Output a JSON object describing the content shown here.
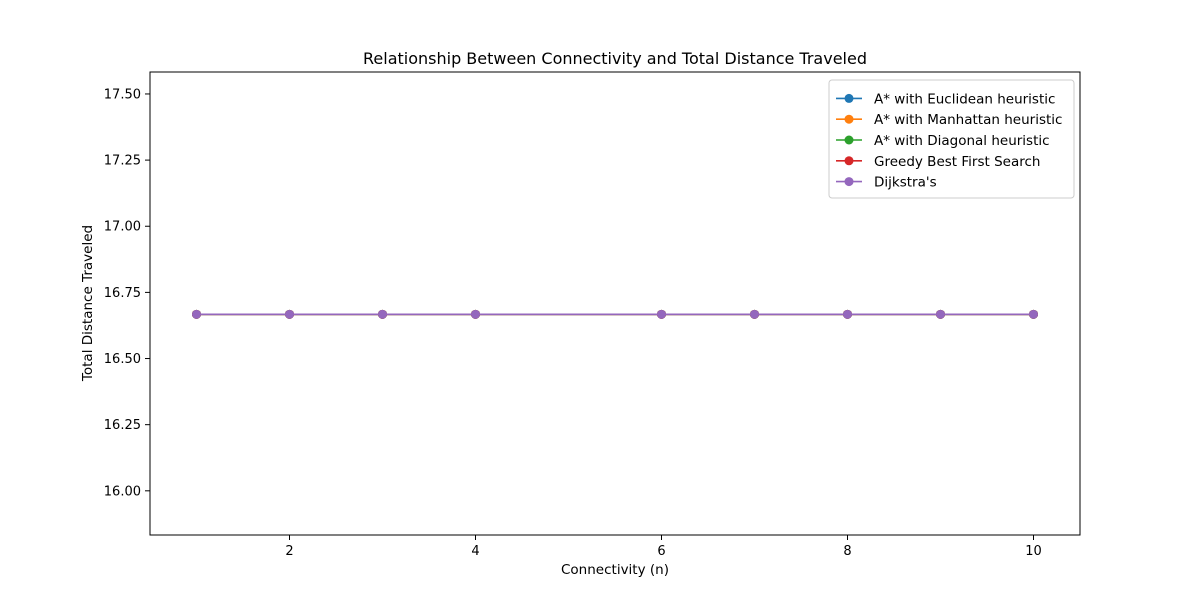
{
  "chart_data": {
    "type": "line",
    "title": "Relationship Between Connectivity and Total Distance Traveled",
    "xlabel": "Connectivity (n)",
    "ylabel": "Total Distance Traveled",
    "xlim": [
      0.5,
      10.5
    ],
    "ylim": [
      15.833,
      17.583
    ],
    "xticks": [
      2,
      4,
      6,
      8,
      10
    ],
    "xtick_labels": [
      "2",
      "4",
      "6",
      "8",
      "10"
    ],
    "yticks": [
      16.0,
      16.25,
      16.5,
      16.75,
      17.0,
      17.25,
      17.5
    ],
    "ytick_labels": [
      "16.00",
      "16.25",
      "16.50",
      "16.75",
      "17.00",
      "17.25",
      "17.50"
    ],
    "x": [
      1,
      2,
      3,
      4,
      6,
      7,
      8,
      9,
      10
    ],
    "grid": false,
    "legend_position": "top-right",
    "series": [
      {
        "name": "A* with Euclidean heuristic",
        "color": "#1f77b4",
        "marker": "circle",
        "values": [
          16.667,
          16.667,
          16.667,
          16.667,
          16.667,
          16.667,
          16.667,
          16.667,
          16.667
        ]
      },
      {
        "name": "A* with Manhattan heuristic",
        "color": "#ff7f0e",
        "marker": "circle",
        "values": [
          16.667,
          16.667,
          16.667,
          16.667,
          16.667,
          16.667,
          16.667,
          16.667,
          16.667
        ]
      },
      {
        "name": "A* with Diagonal heuristic",
        "color": "#2ca02c",
        "marker": "circle",
        "values": [
          16.667,
          16.667,
          16.667,
          16.667,
          16.667,
          16.667,
          16.667,
          16.667,
          16.667
        ]
      },
      {
        "name": "Greedy Best First Search",
        "color": "#d62728",
        "marker": "circle",
        "values": [
          16.667,
          16.667,
          16.667,
          16.667,
          16.667,
          16.667,
          16.667,
          16.667,
          16.667
        ]
      },
      {
        "name": "Dijkstra's",
        "color": "#9467bd",
        "marker": "circle",
        "values": [
          16.667,
          16.667,
          16.667,
          16.667,
          16.667,
          16.667,
          16.667,
          16.667,
          16.667
        ]
      }
    ]
  }
}
